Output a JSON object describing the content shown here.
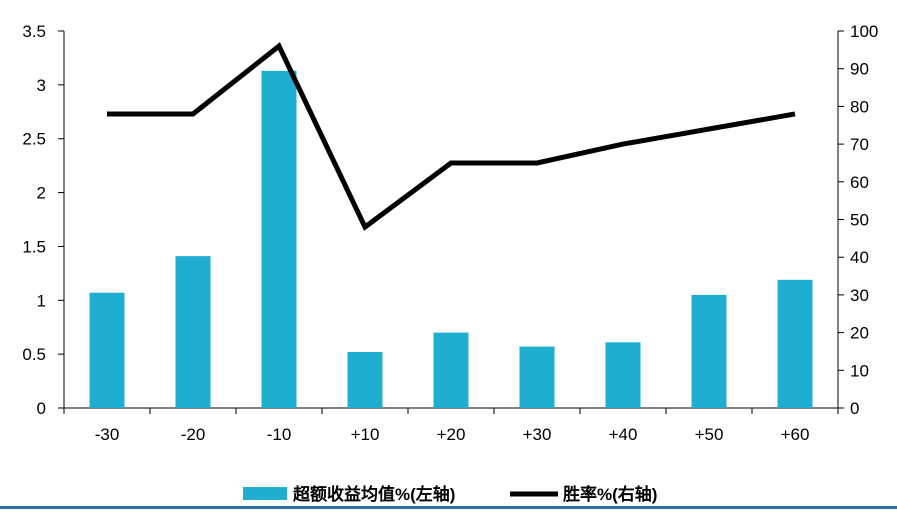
{
  "chart_data": {
    "type": "bar",
    "categories": [
      "-30",
      "-20",
      "-10",
      "+10",
      "+20",
      "+30",
      "+40",
      "+50",
      "+60"
    ],
    "series": [
      {
        "name": "超额收益均值%(左轴)",
        "type": "bar",
        "axis": "left",
        "color": "#1FAECF",
        "values": [
          1.07,
          1.41,
          3.13,
          0.52,
          0.7,
          0.57,
          0.61,
          1.05,
          1.19
        ]
      },
      {
        "name": "胜率%(右轴)",
        "type": "line",
        "axis": "right",
        "color": "#000000",
        "values": [
          78,
          78,
          96,
          48,
          65,
          65,
          70,
          74,
          78
        ]
      }
    ],
    "y_left": {
      "min": 0,
      "max": 3.5,
      "ticks": [
        "0",
        "0.5",
        "1",
        "1.5",
        "2",
        "2.5",
        "3",
        "3.5"
      ]
    },
    "y_right": {
      "min": 0,
      "max": 100,
      "ticks": [
        "0",
        "10",
        "20",
        "30",
        "40",
        "50",
        "60",
        "70",
        "80",
        "90",
        "100"
      ]
    },
    "grid": false,
    "legend_position": "bottom"
  }
}
